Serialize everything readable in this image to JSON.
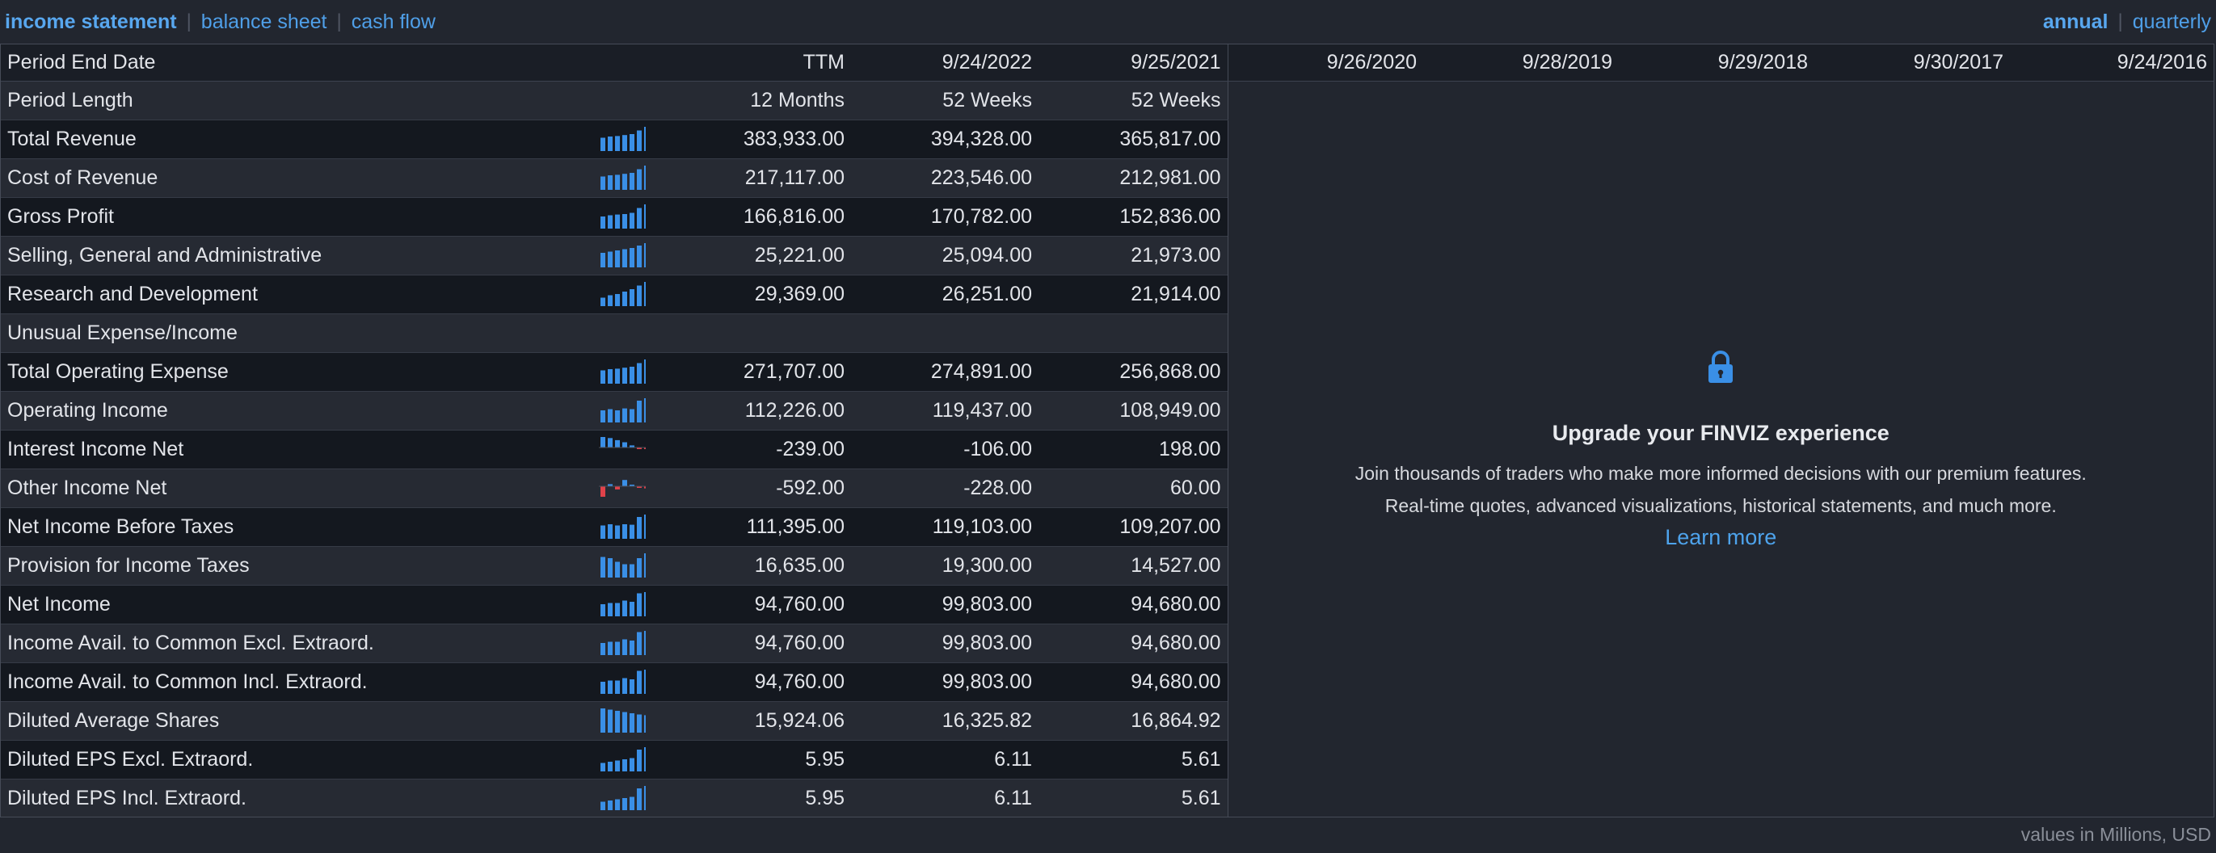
{
  "tabs": {
    "items": [
      "income statement",
      "balance sheet",
      "cash flow"
    ],
    "active": 0
  },
  "periods": {
    "items": [
      "annual",
      "quarterly"
    ],
    "active": 0
  },
  "header": {
    "label": "Period End Date",
    "columns": [
      "TTM",
      "9/24/2022",
      "9/25/2021",
      "9/26/2020",
      "9/28/2019",
      "9/29/2018",
      "9/30/2017",
      "9/24/2016"
    ]
  },
  "period_length": {
    "label": "Period Length",
    "values": [
      "12 Months",
      "52 Weeks",
      "52 Weeks"
    ]
  },
  "rows": [
    {
      "label": "Total Revenue",
      "values": [
        "383,933.00",
        "394,328.00",
        "365,817.00"
      ],
      "trend": [
        0.55,
        0.6,
        0.62,
        0.66,
        0.7,
        0.85,
        1.0
      ]
    },
    {
      "label": "Cost of Revenue",
      "values": [
        "217,117.00",
        "223,546.00",
        "212,981.00"
      ],
      "trend": [
        0.55,
        0.6,
        0.62,
        0.66,
        0.7,
        0.85,
        1.0
      ]
    },
    {
      "label": "Gross Profit",
      "values": [
        "166,816.00",
        "170,782.00",
        "152,836.00"
      ],
      "trend": [
        0.5,
        0.55,
        0.58,
        0.6,
        0.65,
        0.85,
        1.0
      ]
    },
    {
      "label": "Selling, General and Administrative",
      "values": [
        "25,221.00",
        "25,094.00",
        "21,973.00"
      ],
      "trend": [
        0.6,
        0.65,
        0.7,
        0.75,
        0.8,
        0.9,
        1.0
      ]
    },
    {
      "label": "Research and Development",
      "values": [
        "29,369.00",
        "26,251.00",
        "21,914.00"
      ],
      "trend": [
        0.35,
        0.45,
        0.5,
        0.6,
        0.7,
        0.85,
        1.0
      ]
    },
    {
      "label": "Unusual Expense/Income",
      "values": [
        "",
        "",
        ""
      ],
      "trend": []
    },
    {
      "label": "Total Operating Expense",
      "values": [
        "271,707.00",
        "274,891.00",
        "256,868.00"
      ],
      "trend": [
        0.55,
        0.6,
        0.62,
        0.66,
        0.7,
        0.85,
        1.0
      ]
    },
    {
      "label": "Operating Income",
      "values": [
        "112,226.00",
        "119,437.00",
        "108,949.00"
      ],
      "trend": [
        0.5,
        0.55,
        0.5,
        0.58,
        0.55,
        0.9,
        1.0
      ]
    },
    {
      "label": "Interest Income Net",
      "values": [
        "-239.00",
        "-106.00",
        "198.00"
      ],
      "trend": [
        1.0,
        0.9,
        0.7,
        0.5,
        0.2,
        -0.05,
        -0.1
      ],
      "mode": "signed"
    },
    {
      "label": "Other Income Net",
      "values": [
        "-592.00",
        "-228.00",
        "60.00"
      ],
      "trend": [
        -1.0,
        0.2,
        -0.3,
        0.6,
        0.1,
        -0.1,
        -0.2
      ],
      "mode": "signed"
    },
    {
      "label": "Net Income Before Taxes",
      "values": [
        "111,395.00",
        "119,103.00",
        "109,207.00"
      ],
      "trend": [
        0.55,
        0.6,
        0.55,
        0.6,
        0.58,
        0.9,
        1.0
      ]
    },
    {
      "label": "Provision for Income Taxes",
      "values": [
        "16,635.00",
        "19,300.00",
        "14,527.00"
      ],
      "trend": [
        0.85,
        0.8,
        0.65,
        0.55,
        0.55,
        0.8,
        1.0
      ]
    },
    {
      "label": "Net Income",
      "values": [
        "94,760.00",
        "99,803.00",
        "94,680.00"
      ],
      "trend": [
        0.5,
        0.55,
        0.55,
        0.65,
        0.6,
        0.95,
        1.0
      ]
    },
    {
      "label": "Income Avail. to Common Excl. Extraord.",
      "values": [
        "94,760.00",
        "99,803.00",
        "94,680.00"
      ],
      "trend": [
        0.5,
        0.55,
        0.55,
        0.65,
        0.6,
        0.95,
        1.0
      ]
    },
    {
      "label": "Income Avail. to Common Incl. Extraord.",
      "values": [
        "94,760.00",
        "99,803.00",
        "94,680.00"
      ],
      "trend": [
        0.5,
        0.55,
        0.55,
        0.65,
        0.6,
        0.95,
        1.0
      ]
    },
    {
      "label": "Diluted Average Shares",
      "values": [
        "15,924.06",
        "16,325.82",
        "16,864.92"
      ],
      "trend": [
        1.0,
        0.95,
        0.9,
        0.85,
        0.8,
        0.75,
        0.72
      ]
    },
    {
      "label": "Diluted EPS Excl. Extraord.",
      "values": [
        "5.95",
        "6.11",
        "5.61"
      ],
      "trend": [
        0.35,
        0.4,
        0.45,
        0.5,
        0.55,
        0.9,
        1.0
      ]
    },
    {
      "label": "Diluted EPS Incl. Extraord.",
      "values": [
        "5.95",
        "6.11",
        "5.61"
      ],
      "trend": [
        0.35,
        0.4,
        0.45,
        0.5,
        0.55,
        0.9,
        1.0
      ]
    }
  ],
  "promo": {
    "title": "Upgrade your FINVIZ experience",
    "line1": "Join thousands of traders who make more informed decisions with our premium features.",
    "line2": "Real-time quotes, advanced visualizations, historical statements, and much more.",
    "link": "Learn more"
  },
  "footer": "values in Millions, USD",
  "colors": {
    "accent": "#4f9fe8",
    "bar": "#3a8fe6",
    "negative": "#e0424a"
  }
}
